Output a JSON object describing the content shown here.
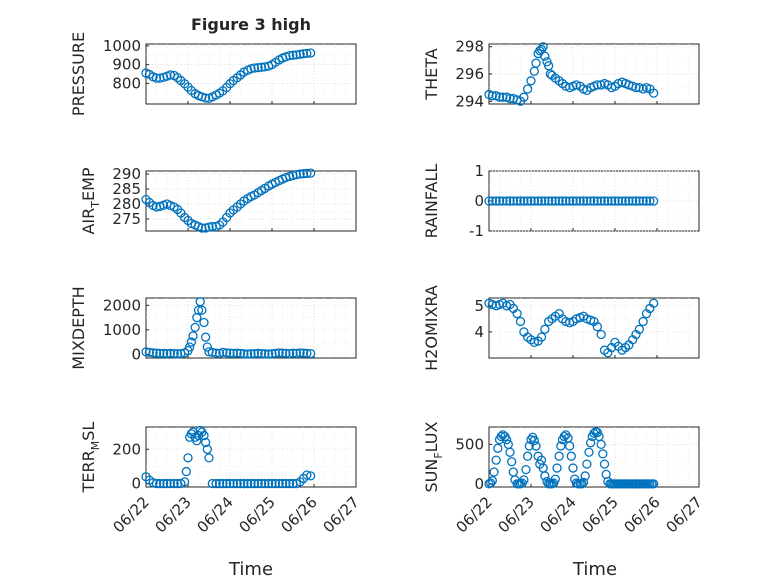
{
  "figure": {
    "title": "Figure 3 high",
    "xlabel": "Time",
    "xtick_labels": [
      "06/22",
      "06/23",
      "06/24",
      "06/25",
      "06/26",
      "06/27"
    ],
    "marker_color": "#0072bd"
  },
  "chart_data": [
    {
      "type": "scatter",
      "title": "Figure 3 high",
      "ylabel": "PRESSURE",
      "ylim": [
        690,
        1010
      ],
      "yticks": [
        "800",
        "900",
        "1000"
      ],
      "xlim": [
        0,
        5
      ],
      "grid": true,
      "x": [
        0.0,
        0.08,
        0.17,
        0.25,
        0.33,
        0.42,
        0.5,
        0.58,
        0.67,
        0.75,
        0.83,
        0.92,
        1.0,
        1.08,
        1.17,
        1.25,
        1.33,
        1.42,
        1.5,
        1.58,
        1.67,
        1.75,
        1.83,
        1.92,
        2.0,
        2.08,
        2.17,
        2.25,
        2.33,
        2.42,
        2.5,
        2.58,
        2.67,
        2.75,
        2.83,
        2.92,
        3.0,
        3.08,
        3.17,
        3.25,
        3.33,
        3.42,
        3.5,
        3.58,
        3.67,
        3.75,
        3.83,
        3.92
      ],
      "y": [
        855,
        848,
        835,
        828,
        828,
        832,
        838,
        845,
        842,
        830,
        815,
        798,
        780,
        762,
        745,
        735,
        728,
        722,
        720,
        728,
        738,
        748,
        760,
        778,
        798,
        815,
        830,
        845,
        860,
        870,
        878,
        882,
        884,
        886,
        888,
        892,
        900,
        912,
        925,
        935,
        942,
        948,
        950,
        952,
        955,
        958,
        960,
        962
      ]
    },
    {
      "type": "scatter",
      "ylabel": "THETA",
      "ylim": [
        293.8,
        298.2
      ],
      "yticks": [
        "294",
        "296",
        "298"
      ],
      "xlim": [
        0,
        5
      ],
      "grid": true,
      "x": [
        0.0,
        0.08,
        0.17,
        0.25,
        0.33,
        0.42,
        0.5,
        0.58,
        0.67,
        0.75,
        0.83,
        0.92,
        1.0,
        1.08,
        1.12,
        1.17,
        1.21,
        1.25,
        1.29,
        1.33,
        1.38,
        1.42,
        1.46,
        1.5,
        1.58,
        1.67,
        1.75,
        1.83,
        1.92,
        2.0,
        2.08,
        2.17,
        2.25,
        2.33,
        2.42,
        2.5,
        2.58,
        2.67,
        2.75,
        2.83,
        2.92,
        3.0,
        3.08,
        3.17,
        3.25,
        3.33,
        3.42,
        3.5,
        3.58,
        3.67,
        3.75,
        3.83,
        3.92
      ],
      "y": [
        294.5,
        294.4,
        294.4,
        294.3,
        294.3,
        294.3,
        294.2,
        294.2,
        294.1,
        294.0,
        294.3,
        294.9,
        295.5,
        296.2,
        296.8,
        297.5,
        297.7,
        297.8,
        298.0,
        297.3,
        296.9,
        296.6,
        296.0,
        295.9,
        295.7,
        295.5,
        295.3,
        295.1,
        295.0,
        295.1,
        295.2,
        295.1,
        294.9,
        294.8,
        295.0,
        295.1,
        295.2,
        295.2,
        295.3,
        295.2,
        295.0,
        295.1,
        295.3,
        295.4,
        295.3,
        295.2,
        295.1,
        295.0,
        295.0,
        294.9,
        295.0,
        294.9,
        294.6
      ]
    },
    {
      "type": "scatter",
      "ylabel": "AIR_TEMP",
      "ylim": [
        271,
        291
      ],
      "yticks": [
        "275",
        "280",
        "285",
        "290"
      ],
      "xlim": [
        0,
        5
      ],
      "grid": true,
      "x": [
        0.0,
        0.08,
        0.17,
        0.25,
        0.33,
        0.42,
        0.5,
        0.58,
        0.67,
        0.75,
        0.83,
        0.92,
        1.0,
        1.08,
        1.17,
        1.25,
        1.33,
        1.42,
        1.5,
        1.58,
        1.67,
        1.75,
        1.83,
        1.92,
        2.0,
        2.08,
        2.17,
        2.25,
        2.33,
        2.42,
        2.5,
        2.58,
        2.67,
        2.75,
        2.83,
        2.92,
        3.0,
        3.08,
        3.17,
        3.25,
        3.33,
        3.42,
        3.5,
        3.58,
        3.67,
        3.75,
        3.83,
        3.92
      ],
      "y": [
        281.5,
        280.5,
        279.5,
        279.0,
        279.2,
        279.6,
        280.0,
        279.5,
        279.0,
        278.2,
        277.0,
        275.5,
        274.5,
        273.5,
        273.0,
        272.5,
        272.0,
        272.0,
        272.3,
        272.5,
        272.5,
        273.0,
        274.0,
        275.5,
        277.0,
        278.0,
        279.0,
        280.0,
        281.0,
        281.8,
        282.5,
        283.0,
        283.8,
        284.5,
        285.2,
        286.0,
        286.6,
        287.2,
        287.8,
        288.3,
        288.8,
        289.2,
        289.5,
        289.8,
        290.0,
        290.1,
        290.2,
        290.3
      ]
    },
    {
      "type": "scatter",
      "ylabel": "RAINFALL",
      "ylim": [
        -1,
        1
      ],
      "yticks": [
        "-1",
        "0",
        "1"
      ],
      "xlim": [
        0,
        5
      ],
      "grid": true,
      "x": [
        0.0,
        0.08,
        0.17,
        0.25,
        0.33,
        0.42,
        0.5,
        0.58,
        0.67,
        0.75,
        0.83,
        0.92,
        1.0,
        1.08,
        1.17,
        1.25,
        1.33,
        1.42,
        1.5,
        1.58,
        1.67,
        1.75,
        1.83,
        1.92,
        2.0,
        2.08,
        2.17,
        2.25,
        2.33,
        2.42,
        2.5,
        2.58,
        2.67,
        2.75,
        2.83,
        2.92,
        3.0,
        3.08,
        3.17,
        3.25,
        3.33,
        3.42,
        3.5,
        3.58,
        3.67,
        3.75,
        3.83,
        3.92
      ],
      "y": [
        0,
        0,
        0,
        0,
        0,
        0,
        0,
        0,
        0,
        0,
        0,
        0,
        0,
        0,
        0,
        0,
        0,
        0,
        0,
        0,
        0,
        0,
        0,
        0,
        0,
        0,
        0,
        0,
        0,
        0,
        0,
        0,
        0,
        0,
        0,
        0,
        0,
        0,
        0,
        0,
        0,
        0,
        0,
        0,
        0,
        0,
        0,
        0
      ]
    },
    {
      "type": "scatter",
      "ylabel": "MIXDEPTH",
      "ylim": [
        -150,
        2300
      ],
      "yticks": [
        "0",
        "1000",
        "2000"
      ],
      "xlim": [
        0,
        5
      ],
      "grid": true,
      "x": [
        0.0,
        0.08,
        0.17,
        0.25,
        0.33,
        0.42,
        0.5,
        0.58,
        0.67,
        0.75,
        0.83,
        0.92,
        1.0,
        1.04,
        1.08,
        1.12,
        1.17,
        1.21,
        1.25,
        1.29,
        1.33,
        1.38,
        1.42,
        1.46,
        1.5,
        1.58,
        1.67,
        1.75,
        1.83,
        1.92,
        2.0,
        2.08,
        2.17,
        2.25,
        2.33,
        2.42,
        2.5,
        2.58,
        2.67,
        2.75,
        2.83,
        2.92,
        3.0,
        3.08,
        3.17,
        3.25,
        3.33,
        3.42,
        3.5,
        3.58,
        3.67,
        3.75,
        3.83,
        3.92
      ],
      "y": [
        100,
        80,
        60,
        50,
        40,
        40,
        30,
        40,
        30,
        20,
        30,
        60,
        150,
        300,
        500,
        750,
        1100,
        1500,
        1800,
        2150,
        1800,
        1300,
        700,
        300,
        100,
        80,
        50,
        40,
        80,
        60,
        50,
        40,
        50,
        40,
        20,
        10,
        20,
        30,
        40,
        30,
        20,
        10,
        20,
        40,
        60,
        50,
        40,
        30,
        50,
        40,
        60,
        50,
        40,
        30
      ]
    },
    {
      "type": "scatter",
      "ylabel": "H2OMIXRA",
      "ylim": [
        3.0,
        5.3
      ],
      "yticks": [
        "4",
        "5"
      ],
      "xlim": [
        0,
        5
      ],
      "grid": true,
      "x": [
        0.0,
        0.08,
        0.17,
        0.25,
        0.33,
        0.42,
        0.5,
        0.58,
        0.67,
        0.75,
        0.83,
        0.92,
        1.0,
        1.08,
        1.17,
        1.25,
        1.33,
        1.42,
        1.5,
        1.58,
        1.67,
        1.75,
        1.83,
        1.92,
        2.0,
        2.08,
        2.17,
        2.25,
        2.33,
        2.42,
        2.5,
        2.58,
        2.67,
        2.75,
        2.83,
        2.92,
        3.0,
        3.08,
        3.17,
        3.25,
        3.33,
        3.42,
        3.5,
        3.58,
        3.67,
        3.75,
        3.83,
        3.92
      ],
      "y": [
        5.1,
        5.05,
        5.0,
        5.05,
        5.1,
        5.0,
        5.05,
        4.9,
        4.7,
        4.4,
        4.0,
        3.8,
        3.7,
        3.6,
        3.65,
        3.8,
        4.1,
        4.4,
        4.5,
        4.6,
        4.7,
        4.5,
        4.4,
        4.35,
        4.4,
        4.5,
        4.55,
        4.6,
        4.5,
        4.45,
        4.4,
        4.2,
        3.9,
        3.3,
        3.2,
        3.4,
        3.6,
        3.45,
        3.3,
        3.4,
        3.5,
        3.7,
        3.9,
        4.1,
        4.4,
        4.7,
        4.9,
        5.1
      ]
    },
    {
      "type": "scatter",
      "ylabel": "TERR_MSL",
      "ylim": [
        -20,
        330
      ],
      "yticks": [
        "0",
        "200"
      ],
      "xlim": [
        0,
        5
      ],
      "grid": true,
      "x": [
        0.0,
        0.08,
        0.17,
        0.25,
        0.33,
        0.42,
        0.5,
        0.58,
        0.67,
        0.75,
        0.83,
        0.92,
        0.96,
        1.0,
        1.04,
        1.08,
        1.12,
        1.17,
        1.21,
        1.25,
        1.29,
        1.33,
        1.38,
        1.42,
        1.46,
        1.5,
        1.58,
        1.67,
        1.75,
        1.83,
        1.92,
        2.0,
        2.08,
        2.17,
        2.25,
        2.33,
        2.42,
        2.5,
        2.58,
        2.67,
        2.75,
        2.83,
        2.92,
        3.0,
        3.08,
        3.17,
        3.25,
        3.33,
        3.42,
        3.5,
        3.58,
        3.67,
        3.75,
        3.83,
        3.92
      ],
      "y": [
        40,
        20,
        5,
        0,
        0,
        0,
        0,
        0,
        0,
        0,
        0,
        10,
        70,
        150,
        270,
        290,
        300,
        270,
        250,
        280,
        310,
        300,
        280,
        240,
        200,
        150,
        0,
        0,
        0,
        0,
        0,
        0,
        0,
        0,
        0,
        0,
        0,
        0,
        0,
        0,
        0,
        0,
        0,
        0,
        0,
        0,
        0,
        0,
        0,
        0,
        0,
        10,
        30,
        50,
        45
      ]
    },
    {
      "type": "scatter",
      "ylabel": "SUN_FLUX",
      "ylim": [
        -40,
        720
      ],
      "yticks": [
        "0",
        "500"
      ],
      "xlim": [
        0,
        5
      ],
      "grid": true,
      "x": [
        0.0,
        0.04,
        0.08,
        0.12,
        0.17,
        0.21,
        0.25,
        0.29,
        0.33,
        0.38,
        0.42,
        0.46,
        0.5,
        0.54,
        0.58,
        0.62,
        0.67,
        0.71,
        0.75,
        0.79,
        0.83,
        0.88,
        0.92,
        0.96,
        1.0,
        1.04,
        1.08,
        1.12,
        1.17,
        1.21,
        1.25,
        1.29,
        1.33,
        1.38,
        1.42,
        1.46,
        1.5,
        1.54,
        1.58,
        1.62,
        1.67,
        1.71,
        1.75,
        1.79,
        1.83,
        1.88,
        1.92,
        1.96,
        2.0,
        2.04,
        2.08,
        2.12,
        2.17,
        2.21,
        2.25,
        2.29,
        2.33,
        2.38,
        2.42,
        2.46,
        2.5,
        2.54,
        2.58,
        2.62,
        2.67,
        2.71,
        2.75,
        2.79,
        2.83,
        2.88,
        2.92,
        2.96,
        3.0,
        3.04,
        3.08,
        3.12,
        3.17,
        3.21,
        3.25,
        3.29,
        3.33,
        3.38,
        3.42,
        3.46,
        3.5,
        3.54,
        3.58,
        3.62,
        3.67,
        3.71,
        3.75,
        3.79,
        3.83,
        3.88,
        3.92
      ],
      "y": [
        0,
        10,
        40,
        150,
        300,
        450,
        560,
        600,
        620,
        600,
        560,
        500,
        400,
        280,
        150,
        50,
        0,
        0,
        0,
        10,
        50,
        180,
        350,
        480,
        560,
        590,
        550,
        480,
        350,
        250,
        300,
        200,
        100,
        30,
        0,
        0,
        0,
        10,
        60,
        200,
        350,
        480,
        560,
        600,
        620,
        580,
        480,
        350,
        200,
        60,
        10,
        0,
        0,
        0,
        20,
        100,
        250,
        400,
        520,
        600,
        640,
        660,
        650,
        600,
        500,
        380,
        250,
        120,
        30,
        0,
        0,
        0,
        0,
        0,
        0,
        0,
        0,
        0,
        0,
        0,
        0,
        0,
        0,
        0,
        0,
        0,
        0,
        0,
        0,
        0,
        0,
        0,
        0,
        0,
        0
      ]
    }
  ]
}
